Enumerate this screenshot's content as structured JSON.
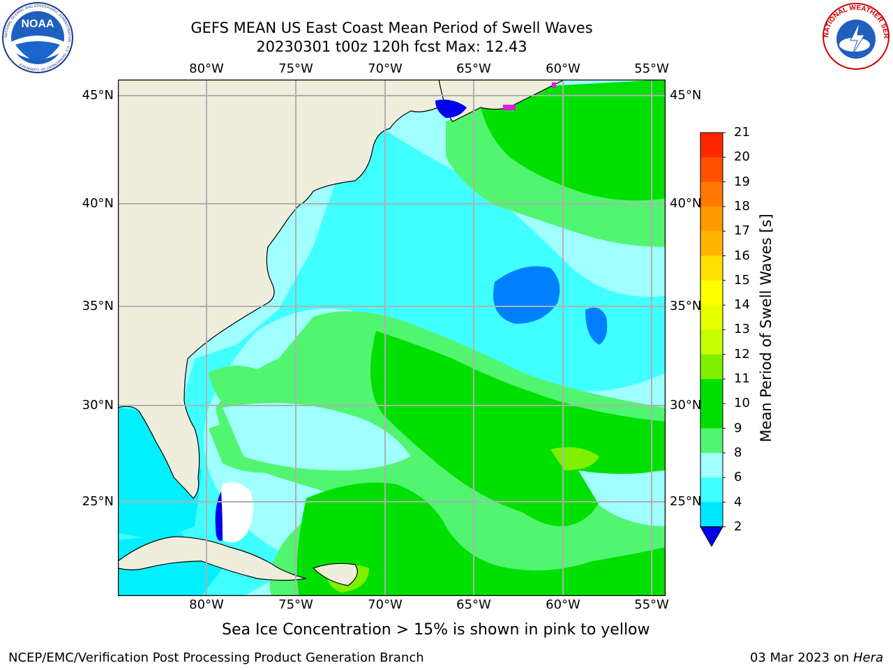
{
  "header": {
    "title_line1": "GEFS MEAN US East Coast Mean Period of Swell Waves",
    "title_line2": "20230301 t00z 120h fcst   Max: 12.43"
  },
  "logos": {
    "noaa": {
      "label": "NOAA",
      "icon": "noaa-logo-icon",
      "ring_text": "NATIONAL OCEANIC AND ATMOSPHERIC ADMINISTRATION · U.S. DEPARTMENT OF COMMERCE"
    },
    "nws": {
      "icon": "nws-logo-icon",
      "ring_text": "NATIONAL WEATHER SERVICE"
    }
  },
  "map": {
    "longitude_labels": [
      "80°W",
      "75°W",
      "70°W",
      "65°W",
      "60°W",
      "55°W"
    ],
    "latitude_labels": [
      "45°N",
      "40°N",
      "35°N",
      "30°N",
      "25°N"
    ],
    "colors": {
      "land": "#efeddc",
      "coast": "#000000",
      "grid": "#b0b0b0",
      "sea_ice": "#e020e0",
      "no_data": "#ffffff"
    }
  },
  "colorbar": {
    "title": "Mean Period of Swell Waves [s]",
    "labels": [
      "21",
      "20",
      "19",
      "18",
      "17",
      "16",
      "15",
      "14",
      "13",
      "12",
      "11",
      "10",
      "9",
      "8",
      "6",
      "4",
      "2"
    ],
    "colors": [
      "#ff0000",
      "#ff2800",
      "#ff5000",
      "#ff7800",
      "#ff9a00",
      "#ffb400",
      "#ffe000",
      "#ffff00",
      "#e8ff00",
      "#c8ff00",
      "#80f000",
      "#00e000",
      "#00e000",
      "#52f570",
      "#a0ffff",
      "#40ffff",
      "#00e8ff",
      "#0080ff"
    ],
    "extend_color": "#0000ee"
  },
  "footer": {
    "note": "Sea Ice Concentration > 15% is shown in pink to yellow",
    "credit": "NCEP/EMC/Verification Post Processing Product Generation Branch",
    "date": "03 Mar 2023 on",
    "host": "Hera"
  }
}
